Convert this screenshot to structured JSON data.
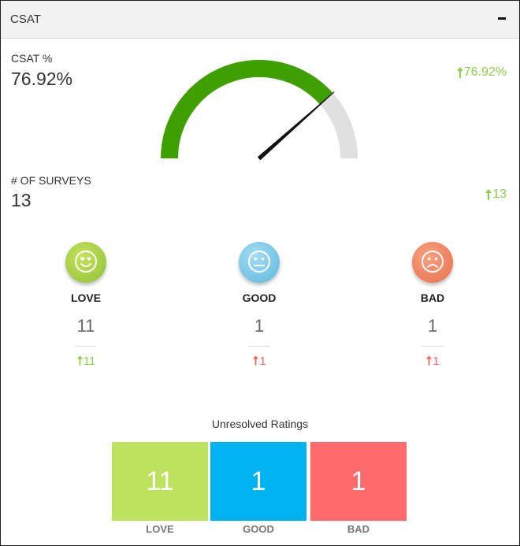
{
  "panel": {
    "title": "CSAT"
  },
  "csat": {
    "label": "CSAT %",
    "value": "76.92%",
    "trend": "76.92%",
    "gauge_fraction": 0.7692,
    "gauge_fill_color": "#3f9e00",
    "gauge_track_color": "#e0e0e0"
  },
  "surveys": {
    "label": "# OF SURVEYS",
    "value": "13",
    "trend": "13"
  },
  "ratings": [
    {
      "name": "LOVE",
      "count": "11",
      "trend": "11",
      "trend_color": "#8ccf4a",
      "icon": "heart-eyes-face-icon"
    },
    {
      "name": "GOOD",
      "count": "1",
      "trend": "1",
      "trend_color": "#f06565",
      "icon": "neutral-face-icon"
    },
    {
      "name": "BAD",
      "count": "1",
      "trend": "1",
      "trend_color": "#f06565",
      "icon": "sad-face-icon"
    }
  ],
  "unresolved": {
    "title": "Unresolved Ratings",
    "tiles": [
      {
        "label": "LOVE",
        "value": "11",
        "color": "#bde35e"
      },
      {
        "label": "GOOD",
        "value": "1",
        "color": "#00b2f0"
      },
      {
        "label": "BAD",
        "value": "1",
        "color": "#ff6b6b"
      }
    ]
  }
}
